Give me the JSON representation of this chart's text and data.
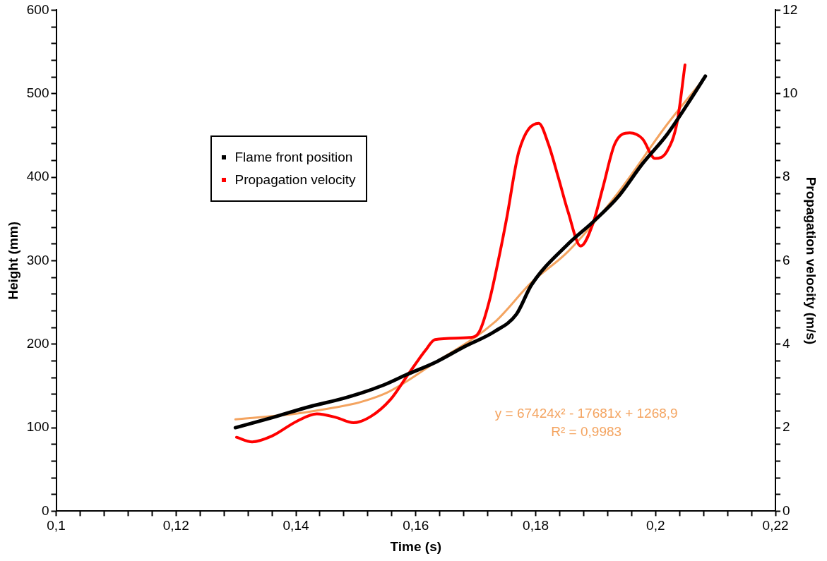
{
  "chart_data": {
    "type": "line",
    "xlabel": "Time (s)",
    "ylabel": "Height (mm)",
    "y2label": "Propagation velocity (m/s)",
    "series": [
      {
        "name": "Flame front position",
        "color": "#000000",
        "x": [
          0.1299,
          0.136,
          0.1422,
          0.1484,
          0.1546,
          0.1583,
          0.1632,
          0.1681,
          0.1731,
          0.1768,
          0.1793,
          0.1854,
          0.1895,
          0.1937,
          0.1978,
          0.2019,
          0.206,
          0.2083
        ],
        "values": [
          100,
          112,
          125,
          136,
          151,
          163,
          178,
          197,
          215,
          236,
          271,
          320,
          346,
          376,
          416,
          451,
          495,
          521
        ]
      },
      {
        "name": "Propagation velocity",
        "color": "#ff0000",
        "axis": "y2",
        "x": [
          0.1301,
          0.1327,
          0.136,
          0.1401,
          0.1435,
          0.1468,
          0.1496,
          0.1525,
          0.1558,
          0.1586,
          0.1616,
          0.1632,
          0.169,
          0.1706,
          0.1722,
          0.174,
          0.1752,
          0.1772,
          0.1805,
          0.1821,
          0.1838,
          0.1854,
          0.1875,
          0.1895,
          0.1912,
          0.1932,
          0.1957,
          0.1978,
          0.1999,
          0.2019,
          0.2036,
          0.2049
        ],
        "values": [
          1.77,
          1.66,
          1.8,
          2.15,
          2.33,
          2.24,
          2.12,
          2.27,
          2.68,
          3.25,
          3.85,
          4.11,
          4.16,
          4.3,
          5.0,
          6.17,
          7.05,
          8.62,
          9.29,
          8.8,
          7.98,
          7.17,
          6.35,
          6.87,
          7.75,
          8.8,
          9.06,
          8.92,
          8.45,
          8.62,
          9.32,
          10.69
        ]
      },
      {
        "color": "#f4a460",
        "x": [
          0.1299,
          0.1422,
          0.1546,
          0.1632,
          0.1731,
          0.1793,
          0.1854,
          0.1937,
          0.2019,
          0.2083
        ],
        "values": [
          110,
          119,
          140,
          178,
          226,
          274,
          311,
          381,
          463,
          520
        ]
      }
    ],
    "xlim": [
      0.1,
      0.22
    ],
    "ylim": [
      0,
      600
    ],
    "y2lim": [
      0,
      12
    ],
    "xticks": [
      {
        "value": 0.1,
        "label": "0,1"
      },
      {
        "value": 0.104,
        "label": null
      },
      {
        "value": 0.108,
        "label": null
      },
      {
        "value": 0.112,
        "label": null
      },
      {
        "value": 0.116,
        "label": null
      },
      {
        "value": 0.12,
        "label": "0,12"
      },
      {
        "value": 0.124,
        "label": null
      },
      {
        "value": 0.128,
        "label": null
      },
      {
        "value": 0.132,
        "label": null
      },
      {
        "value": 0.136,
        "label": null
      },
      {
        "value": 0.14,
        "label": "0,14"
      },
      {
        "value": 0.144,
        "label": null
      },
      {
        "value": 0.148,
        "label": null
      },
      {
        "value": 0.152,
        "label": null
      },
      {
        "value": 0.156,
        "label": null
      },
      {
        "value": 0.16,
        "label": "0,16"
      },
      {
        "value": 0.164,
        "label": null
      },
      {
        "value": 0.168,
        "label": null
      },
      {
        "value": 0.172,
        "label": null
      },
      {
        "value": 0.176,
        "label": null
      },
      {
        "value": 0.18,
        "label": "0,18"
      },
      {
        "value": 0.184,
        "label": null
      },
      {
        "value": 0.188,
        "label": null
      },
      {
        "value": 0.192,
        "label": null
      },
      {
        "value": 0.196,
        "label": null
      },
      {
        "value": 0.2,
        "label": "0,2"
      },
      {
        "value": 0.204,
        "label": null
      },
      {
        "value": 0.208,
        "label": null
      },
      {
        "value": 0.212,
        "label": null
      },
      {
        "value": 0.216,
        "label": null
      },
      {
        "value": 0.22,
        "label": "0,22"
      }
    ],
    "yticks": [
      0,
      {
        "value": 20,
        "label": null
      },
      {
        "value": 40,
        "label": null
      },
      {
        "value": 60,
        "label": null
      },
      {
        "value": 80,
        "label": null
      },
      100,
      {
        "value": 120,
        "label": null
      },
      {
        "value": 140,
        "label": null
      },
      {
        "value": 160,
        "label": null
      },
      {
        "value": 180,
        "label": null
      },
      200,
      {
        "value": 220,
        "label": null
      },
      {
        "value": 240,
        "label": null
      },
      {
        "value": 260,
        "label": null
      },
      {
        "value": 280,
        "label": null
      },
      300,
      {
        "value": 320,
        "label": null
      },
      {
        "value": 340,
        "label": null
      },
      {
        "value": 360,
        "label": null
      },
      {
        "value": 380,
        "label": null
      },
      400,
      {
        "value": 420,
        "label": null
      },
      {
        "value": 440,
        "label": null
      },
      {
        "value": 460,
        "label": null
      },
      {
        "value": 480,
        "label": null
      },
      500,
      {
        "value": 520,
        "label": null
      },
      {
        "value": 540,
        "label": null
      },
      {
        "value": 560,
        "label": null
      },
      {
        "value": 580,
        "label": null
      },
      600
    ],
    "y2ticks": [
      0,
      {
        "value": 0.4,
        "label": null
      },
      {
        "value": 0.8,
        "label": null
      },
      {
        "value": 1.2,
        "label": null
      },
      {
        "value": 1.6,
        "label": null
      },
      2,
      {
        "value": 2.4,
        "label": null
      },
      {
        "value": 2.8,
        "label": null
      },
      {
        "value": 3.2,
        "label": null
      },
      {
        "value": 3.6,
        "label": null
      },
      4,
      {
        "value": 4.4,
        "label": null
      },
      {
        "value": 4.8,
        "label": null
      },
      {
        "value": 5.2,
        "label": null
      },
      {
        "value": 5.6,
        "label": null
      },
      6,
      {
        "value": 6.4,
        "label": null
      },
      {
        "value": 6.8,
        "label": null
      },
      {
        "value": 7.2,
        "label": null
      },
      {
        "value": 7.6,
        "label": null
      },
      8,
      {
        "value": 8.4,
        "label": null
      },
      {
        "value": 8.8,
        "label": null
      },
      {
        "value": 9.2,
        "label": null
      },
      {
        "value": 9.6,
        "label": null
      },
      10,
      {
        "value": 10.4,
        "label": null
      },
      {
        "value": 10.8,
        "label": null
      },
      {
        "value": 11.2,
        "label": null
      },
      {
        "value": 11.6,
        "label": null
      },
      12
    ],
    "grid": false,
    "legend": "top left",
    "annotations": [
      "y = 67424x² - 17681x + 1268,9",
      "R² = 0,9983"
    ]
  }
}
